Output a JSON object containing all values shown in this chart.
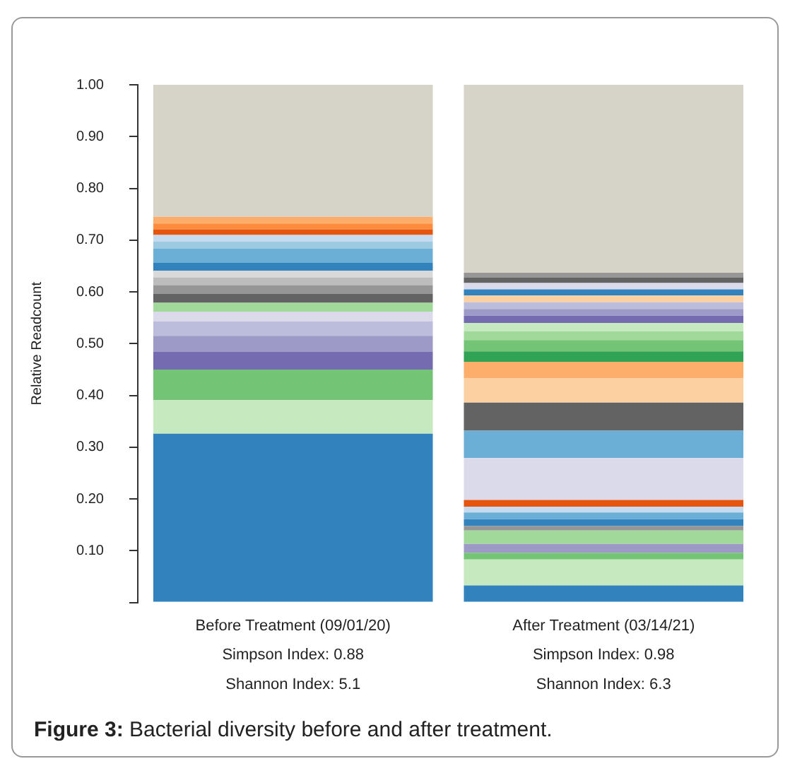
{
  "chart_data": {
    "type": "bar",
    "stacked": true,
    "ylabel": "Relative Readcount",
    "categories": [
      "Before Treatment (09/01/20)\nSimpson Index: 0.88\nShannon Index: 5.1",
      "After Treatment (03/14/21)\nSimpson Index: 0.98\nShannon Index: 6.3"
    ],
    "ylim": [
      0,
      1.0
    ],
    "yticks": [
      {
        "value": 0,
        "label": null
      },
      {
        "value": 0.1,
        "label": "0.10"
      },
      {
        "value": 0.2,
        "label": "0.20"
      },
      {
        "value": 0.3,
        "label": "0.30"
      },
      {
        "value": 0.4,
        "label": "0.40"
      },
      {
        "value": 0.5,
        "label": "0.50"
      },
      {
        "value": 0.6,
        "label": "0.60"
      },
      {
        "value": 0.7,
        "label": "0.70"
      },
      {
        "value": 0.8,
        "label": "0.80"
      },
      {
        "value": 0.9,
        "label": "0.90"
      },
      {
        "value": 1.0,
        "label": "1.00"
      }
    ],
    "grid": false,
    "legend": false,
    "annotations": [
      "Figure 3: Bacterial diversity before and after treatment."
    ],
    "series": [
      {
        "values": [
          0.326,
          0.033
        ],
        "colors": [
          "#3182bd",
          "#3182bd"
        ]
      },
      {
        "values": [
          0.065,
          0.05
        ],
        "colors": [
          "#c7e9c0",
          "#c7e9c0"
        ]
      },
      {
        "values": [
          0.059,
          0.013
        ],
        "colors": [
          "#74c476",
          "#74c476"
        ]
      },
      {
        "values": [
          0.034,
          0.017
        ],
        "colors": [
          "#756bb1",
          "#9e9ac8"
        ]
      },
      {
        "values": [
          0.031,
          0.026
        ],
        "colors": [
          "#9e9ac8",
          "#a1d99b"
        ]
      },
      {
        "values": [
          0.028,
          0.009
        ],
        "colors": [
          "#bcbddc",
          "#969696"
        ]
      },
      {
        "values": [
          0.019,
          0.013
        ],
        "colors": [
          "#dadaeb",
          "#3182bd"
        ]
      },
      {
        "values": [
          0.017,
          0.013
        ],
        "colors": [
          "#a1d99b",
          "#6baed6"
        ]
      },
      {
        "values": [
          0.017,
          0.011
        ],
        "colors": [
          "#636363",
          "#c6dbef"
        ]
      },
      {
        "values": [
          0.017,
          0.013
        ],
        "colors": [
          "#969696",
          "#e6550d"
        ]
      },
      {
        "values": [
          0.015,
          0.081
        ],
        "colors": [
          "#bdbdbd",
          "#dadaeb"
        ]
      },
      {
        "values": [
          0.013,
          0.053
        ],
        "colors": [
          "#d9d9d9",
          "#6baed6"
        ]
      },
      {
        "values": [
          0.015,
          0.054
        ],
        "colors": [
          "#3182bd",
          "#636363"
        ]
      },
      {
        "values": [
          0.028,
          0.047
        ],
        "colors": [
          "#6baed6",
          "#fdd0a2"
        ]
      },
      {
        "values": [
          0.013,
          0.032
        ],
        "colors": [
          "#9ecae1",
          "#fdae6b"
        ]
      },
      {
        "values": [
          0.013,
          0.02
        ],
        "colors": [
          "#c6dbef",
          "#31a354"
        ]
      },
      {
        "values": [
          0.011,
          0.022
        ],
        "colors": [
          "#e6550d",
          "#74c476"
        ]
      },
      {
        "values": [
          0.011,
          0.017
        ],
        "colors": [
          "#fd8d3c",
          "#a1d99b"
        ]
      },
      {
        "values": [
          0.013,
          0.016
        ],
        "colors": [
          "#fdae6b",
          "#c7e9c0"
        ]
      },
      {
        "values": [
          0.255,
          0.014
        ],
        "colors": [
          "#d6d3c9",
          "#756bb1"
        ]
      },
      {
        "values": [
          null,
          0.013
        ],
        "colors": [
          "#d6d3c9",
          "#9e9ac8"
        ]
      },
      {
        "values": [
          null,
          0.013
        ],
        "colors": [
          "#d6d3c9",
          "#bcbddc"
        ]
      },
      {
        "values": [
          null,
          0.013
        ],
        "colors": [
          "#d6d3c9",
          "#fdd0a2"
        ]
      },
      {
        "values": [
          null,
          0.012
        ],
        "colors": [
          "#d6d3c9",
          "#3182bd"
        ]
      },
      {
        "values": [
          null,
          0.012
        ],
        "colors": [
          "#d6d3c9",
          "#dadaeb"
        ]
      },
      {
        "values": [
          null,
          0.011
        ],
        "colors": [
          "#d6d3c9",
          "#636363"
        ]
      },
      {
        "values": [
          null,
          0.009
        ],
        "colors": [
          "#d6d3c9",
          "#969696"
        ]
      },
      {
        "values": [
          null,
          0.363
        ],
        "colors": [
          "#d6d3c9",
          "#d6d3c9"
        ]
      }
    ]
  }
}
